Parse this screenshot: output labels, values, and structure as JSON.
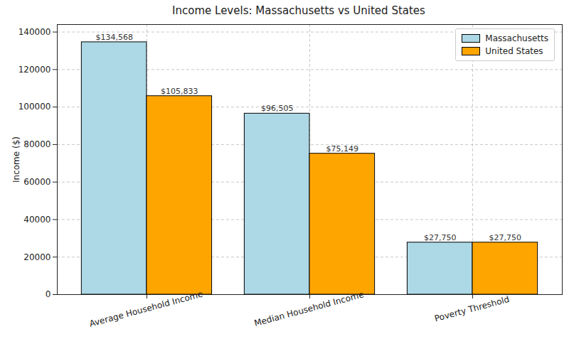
{
  "chart_data": {
    "type": "bar",
    "title": "Income Levels: Massachusetts vs United States",
    "y_label": "Income ($)",
    "categories": [
      "Average Household Income",
      "Median Household Income",
      "Poverty Threshold"
    ],
    "series": [
      {
        "name": "Massachusetts",
        "color": "#add8e6",
        "values": [
          134568,
          96505,
          27750
        ],
        "value_labels": [
          "$134,568",
          "$96,505",
          "$27,750"
        ]
      },
      {
        "name": "United States",
        "color": "#ffa500",
        "values": [
          105833,
          75149,
          27750
        ],
        "value_labels": [
          "$105,833",
          "$75,149",
          "$27,750"
        ]
      }
    ],
    "ylim": [
      0,
      144000
    ],
    "yticks": [
      0,
      20000,
      40000,
      60000,
      80000,
      100000,
      120000,
      140000
    ],
    "grid": true,
    "legend": "upper right",
    "data_labels": true
  }
}
